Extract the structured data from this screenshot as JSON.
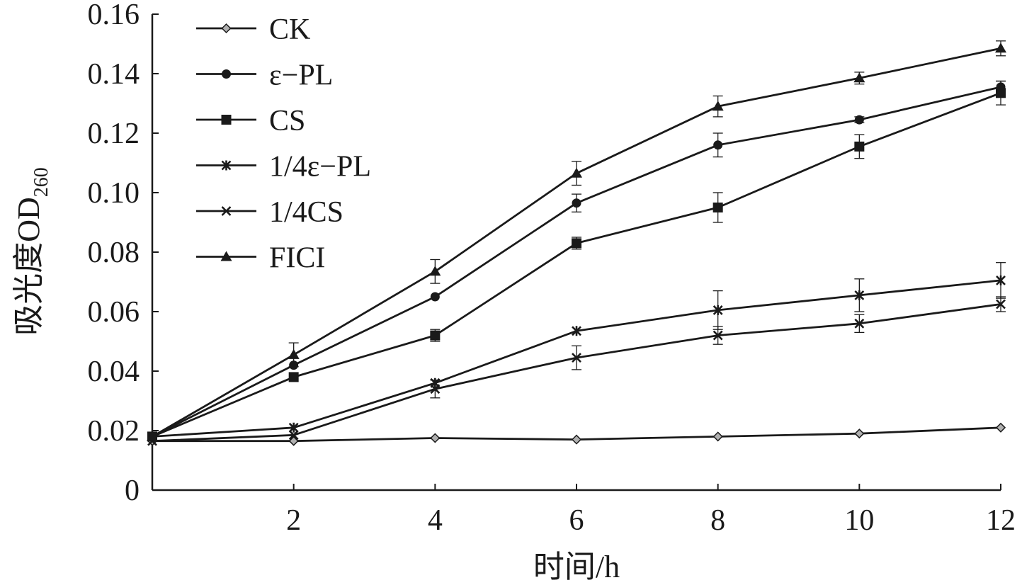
{
  "chart_data": {
    "type": "line",
    "xlabel": "时间/h",
    "ylabel": "吸光度OD",
    "ylabel_subscript": "260",
    "xlim": [
      0,
      12
    ],
    "ylim": [
      0,
      0.16
    ],
    "xticks": [
      2,
      4,
      6,
      8,
      10,
      12
    ],
    "yticks": [
      0,
      0.02,
      0.04,
      0.06,
      0.08,
      0.1,
      0.12,
      0.14,
      0.16
    ],
    "ytick_labels": [
      "0",
      "0.02",
      "0.04",
      "0.06",
      "0.08",
      "0.10",
      "0.12",
      "0.14",
      "0.16"
    ],
    "grid": false,
    "legend_position": "top-left",
    "x": [
      0,
      2,
      4,
      6,
      8,
      10,
      12
    ],
    "series": [
      {
        "name": "CK",
        "marker": "diamond",
        "values": [
          0.0165,
          0.0165,
          0.0175,
          0.017,
          0.018,
          0.019,
          0.021
        ],
        "errors": [
          0,
          0,
          0,
          0,
          0,
          0,
          0
        ]
      },
      {
        "name": "ε−PL",
        "marker": "circle",
        "values": [
          0.018,
          0.042,
          0.065,
          0.0965,
          0.116,
          0.1245,
          0.1355
        ],
        "errors": [
          0,
          0,
          0,
          0.003,
          0.004,
          0.001,
          0.002
        ]
      },
      {
        "name": "CS",
        "marker": "square",
        "values": [
          0.018,
          0.038,
          0.052,
          0.083,
          0.095,
          0.1155,
          0.1335
        ],
        "errors": [
          0,
          0,
          0.002,
          0.002,
          0.005,
          0.004,
          0.004
        ]
      },
      {
        "name": "1/4ε−PL",
        "marker": "star",
        "values": [
          0.018,
          0.021,
          0.036,
          0.0535,
          0.0605,
          0.0655,
          0.0705
        ],
        "errors": [
          0,
          0,
          0,
          0,
          0.0065,
          0.0055,
          0.006
        ]
      },
      {
        "name": "1/4CS",
        "marker": "x",
        "values": [
          0.0165,
          0.0185,
          0.034,
          0.0445,
          0.052,
          0.056,
          0.0625
        ],
        "errors": [
          0,
          0,
          0.003,
          0.004,
          0.003,
          0.003,
          0.0025
        ]
      },
      {
        "name": "FICI",
        "marker": "triangle",
        "values": [
          0.018,
          0.0455,
          0.0735,
          0.1065,
          0.129,
          0.1385,
          0.1485
        ],
        "errors": [
          0,
          0.004,
          0.004,
          0.004,
          0.0035,
          0.002,
          0.0025
        ]
      }
    ],
    "colors": {
      "line": "#1a1a1a",
      "ck_marker_fill": "#b0b0b0",
      "axis": "#1a1a1a"
    }
  }
}
